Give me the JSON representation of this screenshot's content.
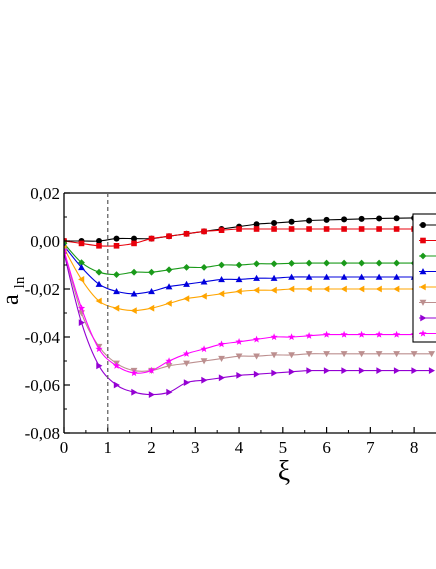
{
  "chart_data": {
    "type": "line",
    "xlabel": "ξ",
    "ylabel": "a",
    "ylabel_sub": "ln",
    "xlim": [
      0,
      8.5
    ],
    "ylim": [
      -0.08,
      0.02
    ],
    "xticks": [
      0,
      1,
      2,
      3,
      4,
      5,
      6,
      7,
      8
    ],
    "xtick_labels": [
      "0",
      "1",
      "2",
      "3",
      "4",
      "5",
      "6",
      "7",
      "8"
    ],
    "yticks": [
      0.02,
      0.0,
      -0.02,
      -0.04,
      -0.06,
      -0.08
    ],
    "ytick_labels": [
      "0,02",
      "0,00",
      "-0,02",
      "-0,04",
      "-0,06",
      "-0,08"
    ],
    "vline_x": 1.0,
    "legend_position": "right (partially cropped)",
    "series": [
      {
        "color": "#000000",
        "marker": "circle",
        "x": [
          0,
          0.4,
          0.8,
          1.2,
          1.6,
          2.0,
          2.4,
          2.8,
          3.2,
          3.6,
          4.0,
          4.4,
          4.8,
          5.2,
          5.6,
          6.0,
          6.4,
          6.8,
          7.2,
          7.6,
          8.0,
          8.4
        ],
        "y": [
          0.0,
          0.0,
          0.0,
          0.001,
          0.001,
          0.001,
          0.002,
          0.003,
          0.004,
          0.005,
          0.006,
          0.007,
          0.0075,
          0.008,
          0.0085,
          0.0088,
          0.009,
          0.0092,
          0.0094,
          0.0095,
          0.0096,
          0.0097
        ]
      },
      {
        "color": "#e8000b",
        "marker": "square",
        "x": [
          0,
          0.4,
          0.8,
          1.2,
          1.6,
          2.0,
          2.4,
          2.8,
          3.2,
          3.6,
          4.0,
          4.4,
          4.8,
          5.2,
          5.6,
          6.0,
          6.4,
          6.8,
          7.2,
          7.6,
          8.0,
          8.4
        ],
        "y": [
          0.0,
          -0.001,
          -0.002,
          -0.002,
          -0.001,
          0.001,
          0.002,
          0.003,
          0.004,
          0.0045,
          0.005,
          0.005,
          0.005,
          0.005,
          0.005,
          0.005,
          0.005,
          0.005,
          0.005,
          0.005,
          0.005,
          0.005
        ]
      },
      {
        "color": "#1a9a1a",
        "marker": "diamond",
        "x": [
          0,
          0.4,
          0.8,
          1.2,
          1.6,
          2.0,
          2.4,
          2.8,
          3.2,
          3.6,
          4.0,
          4.4,
          4.8,
          5.2,
          5.6,
          6.0,
          6.4,
          6.8,
          7.2,
          7.6,
          8.0,
          8.4
        ],
        "y": [
          -0.001,
          -0.009,
          -0.013,
          -0.014,
          -0.013,
          -0.013,
          -0.012,
          -0.011,
          -0.011,
          -0.01,
          -0.01,
          -0.0095,
          -0.0095,
          -0.0093,
          -0.0092,
          -0.0092,
          -0.0092,
          -0.0092,
          -0.0092,
          -0.0092,
          -0.0092,
          -0.0092
        ]
      },
      {
        "color": "#0000dd",
        "marker": "triangle-up",
        "x": [
          0,
          0.4,
          0.8,
          1.2,
          1.6,
          2.0,
          2.4,
          2.8,
          3.2,
          3.6,
          4.0,
          4.4,
          4.8,
          5.2,
          5.6,
          6.0,
          6.4,
          6.8,
          7.2,
          7.6,
          8.0,
          8.4
        ],
        "y": [
          -0.002,
          -0.011,
          -0.018,
          -0.021,
          -0.022,
          -0.021,
          -0.019,
          -0.018,
          -0.017,
          -0.016,
          -0.016,
          -0.0155,
          -0.0155,
          -0.015,
          -0.015,
          -0.015,
          -0.015,
          -0.015,
          -0.015,
          -0.015,
          -0.015,
          -0.015
        ]
      },
      {
        "color": "#ffa500",
        "marker": "triangle-left",
        "x": [
          0,
          0.4,
          0.8,
          1.2,
          1.6,
          2.0,
          2.4,
          2.8,
          3.2,
          3.6,
          4.0,
          4.4,
          4.8,
          5.2,
          5.6,
          6.0,
          6.4,
          6.8,
          7.2,
          7.6,
          8.0,
          8.4
        ],
        "y": [
          -0.003,
          -0.016,
          -0.025,
          -0.028,
          -0.029,
          -0.028,
          -0.026,
          -0.024,
          -0.023,
          -0.022,
          -0.021,
          -0.0205,
          -0.0205,
          -0.02,
          -0.02,
          -0.02,
          -0.02,
          -0.02,
          -0.02,
          -0.02,
          -0.02,
          -0.02
        ]
      },
      {
        "color": "#bc8f8f",
        "marker": "triangle-down",
        "x": [
          0,
          0.4,
          0.8,
          1.2,
          1.6,
          2.0,
          2.4,
          2.8,
          3.2,
          3.6,
          4.0,
          4.4,
          4.8,
          5.2,
          5.6,
          6.0,
          6.4,
          6.8,
          7.2,
          7.6,
          8.0,
          8.4
        ],
        "y": [
          -0.004,
          -0.03,
          -0.044,
          -0.051,
          -0.054,
          -0.054,
          -0.052,
          -0.051,
          -0.05,
          -0.049,
          -0.048,
          -0.048,
          -0.0475,
          -0.0475,
          -0.047,
          -0.047,
          -0.047,
          -0.047,
          -0.047,
          -0.047,
          -0.047,
          -0.047
        ]
      },
      {
        "color": "#9400d3",
        "marker": "triangle-right",
        "x": [
          0,
          0.4,
          0.8,
          1.2,
          1.6,
          2.0,
          2.4,
          2.8,
          3.2,
          3.6,
          4.0,
          4.4,
          4.8,
          5.2,
          5.6,
          6.0,
          6.4,
          6.8,
          7.2,
          7.6,
          8.0,
          8.4
        ],
        "y": [
          -0.005,
          -0.034,
          -0.052,
          -0.06,
          -0.063,
          -0.064,
          -0.063,
          -0.059,
          -0.058,
          -0.057,
          -0.056,
          -0.0555,
          -0.055,
          -0.0545,
          -0.054,
          -0.054,
          -0.054,
          -0.054,
          -0.054,
          -0.054,
          -0.054,
          -0.054
        ]
      },
      {
        "color": "#ff00ff",
        "marker": "star",
        "x": [
          0,
          0.4,
          0.8,
          1.2,
          1.6,
          2.0,
          2.4,
          2.8,
          3.2,
          3.6,
          4.0,
          4.4,
          4.8,
          5.2,
          5.6,
          6.0,
          6.4,
          6.8,
          7.2,
          7.6,
          8.0,
          8.4
        ],
        "y": [
          -0.004,
          -0.028,
          -0.045,
          -0.052,
          -0.055,
          -0.054,
          -0.05,
          -0.047,
          -0.045,
          -0.043,
          -0.042,
          -0.041,
          -0.04,
          -0.04,
          -0.0395,
          -0.039,
          -0.039,
          -0.039,
          -0.039,
          -0.039,
          -0.039,
          -0.039
        ]
      }
    ]
  }
}
